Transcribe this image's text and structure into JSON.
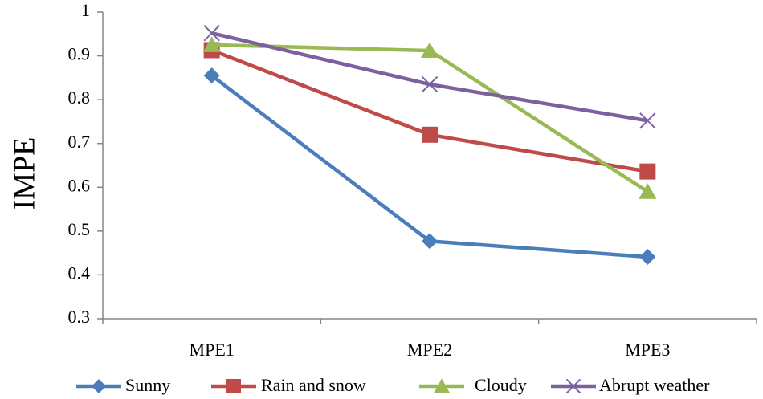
{
  "chart_data": {
    "type": "line",
    "title": "",
    "xlabel": "",
    "ylabel": "IMPE",
    "categories": [
      "MPE1",
      "MPE2",
      "MPE3"
    ],
    "ylim": [
      0.3,
      1
    ],
    "yticks": [
      "0.3",
      "0.4",
      "0.5",
      "0.6",
      "0.7",
      "0.8",
      "0.9",
      "1"
    ],
    "grid": false,
    "legend_position": "bottom",
    "series": [
      {
        "name": "Sunny",
        "values": [
          0.855,
          0.477,
          0.441
        ],
        "color": "#4a7ebb",
        "marker": "diamond"
      },
      {
        "name": "Rain and snow",
        "values": [
          0.913,
          0.72,
          0.636
        ],
        "color": "#be4b48",
        "marker": "square"
      },
      {
        "name": "Cloudy",
        "values": [
          0.925,
          0.912,
          0.59
        ],
        "color": "#98b954",
        "marker": "triangle"
      },
      {
        "name": "Abrupt weather",
        "values": [
          0.952,
          0.835,
          0.752
        ],
        "color": "#7d60a0",
        "marker": "x"
      }
    ]
  }
}
